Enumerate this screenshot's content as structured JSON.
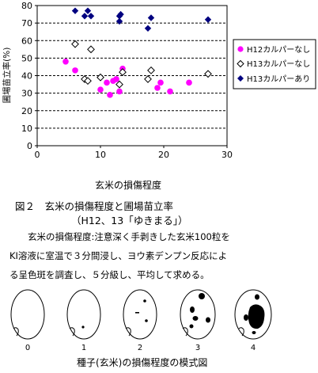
{
  "chart_data": {
    "type": "scatter",
    "xlabel": "玄米の損傷程度",
    "ylabel": "圃場苗立率(%)",
    "xlim": [
      0,
      30
    ],
    "ylim": [
      0,
      80
    ],
    "x_ticks": [
      0,
      10,
      20,
      30
    ],
    "y_ticks": [
      0,
      10,
      20,
      30,
      40,
      50,
      60,
      70,
      80
    ],
    "grid": "horizontal-dashed",
    "legend_position": "right",
    "series": [
      {
        "name": "H12カルパーなし",
        "marker": "circle-filled",
        "color": "#ff00ff",
        "points": [
          [
            4.5,
            48
          ],
          [
            6,
            43
          ],
          [
            10,
            32
          ],
          [
            11,
            36
          ],
          [
            11.5,
            29
          ],
          [
            12,
            37
          ],
          [
            12.5,
            38
          ],
          [
            13,
            31
          ],
          [
            13.5,
            44
          ],
          [
            19,
            33
          ],
          [
            19.5,
            36
          ],
          [
            21,
            31
          ],
          [
            24,
            36
          ]
        ]
      },
      {
        "name": "H13カルパーなし",
        "marker": "diamond-open",
        "color": "#000000",
        "points": [
          [
            6,
            58
          ],
          [
            7.5,
            38
          ],
          [
            8,
            37
          ],
          [
            8.5,
            55
          ],
          [
            10,
            39
          ],
          [
            13,
            35
          ],
          [
            13.5,
            42
          ],
          [
            17.5,
            38
          ],
          [
            18,
            43
          ],
          [
            27,
            41
          ]
        ]
      },
      {
        "name": "H13カルパーあり",
        "marker": "diamond-filled",
        "color": "#000080",
        "points": [
          [
            6,
            77
          ],
          [
            7.5,
            74
          ],
          [
            8,
            77
          ],
          [
            8.5,
            74
          ],
          [
            13,
            71
          ],
          [
            13,
            74
          ],
          [
            13.2,
            75
          ],
          [
            17.5,
            67
          ],
          [
            18,
            73
          ],
          [
            27,
            72
          ]
        ]
      }
    ]
  },
  "figure": {
    "title": "図２　玄米の損傷程度と圃場苗立率",
    "subtitle": "（H12、13「ゆきまる」）",
    "desc_line1": "玄米の損傷程度:注意深く手剥きした玄米100粒を",
    "desc_line2": "KI溶液に室温で３分間浸し、ヨウ素デンプン反応によ",
    "desc_line3": "る呈色斑を調査し、５分級し、平均して求める。"
  },
  "scale_diagram": {
    "caption": "種子(玄米)の損傷程度の模式図",
    "grades": [
      "0",
      "1",
      "2",
      "3",
      "4"
    ]
  },
  "colors": {
    "h12_marker": "#ff00ff",
    "h13_open_marker": "#000000",
    "h13_filled_marker": "#000080"
  }
}
